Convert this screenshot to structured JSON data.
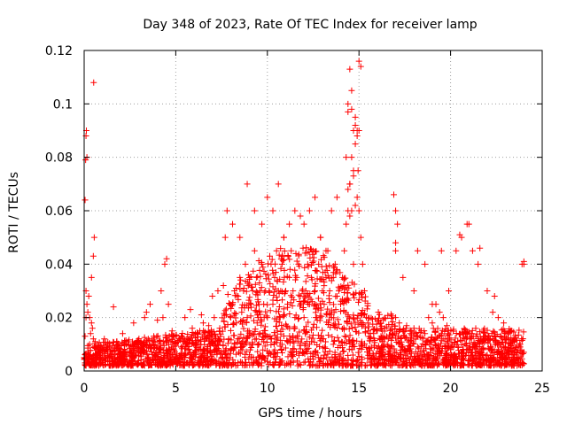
{
  "chart_data": {
    "type": "scatter",
    "title": "Day 348 of 2023, Rate Of TEC Index for receiver lamp",
    "xlabel": "GPS time / hours",
    "ylabel": "ROTI / TECUs",
    "xlim": [
      0,
      25
    ],
    "ylim": [
      0,
      0.12
    ],
    "x_ticks": [
      0,
      5,
      10,
      15,
      20,
      25
    ],
    "x_tick_labels": [
      "0",
      "5",
      "10",
      "15",
      "20",
      "25"
    ],
    "y_ticks": [
      0,
      0.02,
      0.04,
      0.06,
      0.08,
      0.1,
      0.12
    ],
    "y_tick_labels": [
      "0",
      "0.02",
      "0.04",
      "0.06",
      "0.08",
      "0.1",
      "0.12"
    ],
    "grid": true,
    "marker": "+",
    "color": "#ff0000",
    "series": [
      {
        "x": [
          0.0,
          0.05,
          0.1,
          0.1,
          0.15,
          0.2,
          0.25,
          0.3,
          0.35,
          0.4,
          0.45,
          0.5,
          0.55,
          0.6,
          0.05,
          0.08,
          0.1,
          0.12,
          0.15,
          0.5,
          0.55,
          0.52,
          0.3,
          0.4,
          1.0,
          1.2,
          1.5,
          1.8,
          2.0,
          2.3,
          2.6,
          2.9,
          3.2,
          3.5,
          3.8,
          4.1,
          4.3,
          4.4,
          4.5,
          4.6,
          4.8,
          5.0,
          5.3,
          5.6,
          5.9,
          6.2,
          6.5,
          6.8,
          7.1,
          7.4,
          1.1,
          1.6,
          2.1,
          2.7,
          3.3,
          3.4,
          3.6,
          4.0,
          4.2,
          5.5,
          5.8,
          6.4,
          7.0,
          7.3,
          7.6,
          7.7,
          7.8,
          7.9,
          8.0,
          8.1,
          8.2,
          8.3,
          8.4,
          8.5,
          8.6,
          8.7,
          8.8,
          8.9,
          9.0,
          9.1,
          9.2,
          9.3,
          9.4,
          9.5,
          9.6,
          9.7,
          9.8,
          9.9,
          8.0,
          8.2,
          8.4,
          8.6,
          8.8,
          9.0,
          9.2,
          9.4,
          9.6,
          9.8,
          8.1,
          8.5,
          8.9,
          9.3,
          9.7,
          10.0,
          10.1,
          10.2,
          10.3,
          10.4,
          10.5,
          10.6,
          10.7,
          10.8,
          10.9,
          11.0,
          11.1,
          11.2,
          11.3,
          11.4,
          11.5,
          11.6,
          11.7,
          11.8,
          11.9,
          10.0,
          10.3,
          10.6,
          10.9,
          11.2,
          11.5,
          11.8,
          10.2,
          10.8,
          11.4,
          12.0,
          12.1,
          12.2,
          12.3,
          12.4,
          12.5,
          12.6,
          12.7,
          12.8,
          12.9,
          13.0,
          13.1,
          13.2,
          13.3,
          13.4,
          13.5,
          13.6,
          13.7,
          13.8,
          13.9,
          12.0,
          12.3,
          12.6,
          12.9,
          13.2,
          13.5,
          13.8,
          12.4,
          13.0,
          13.6,
          14.0,
          14.1,
          14.2,
          14.3,
          14.4,
          14.5,
          14.6,
          14.7,
          14.8,
          14.9,
          15.0,
          15.1,
          15.2,
          15.3,
          15.4,
          15.5,
          14.3,
          14.4,
          14.5,
          14.6,
          14.7,
          14.8,
          14.9,
          15.0,
          15.1,
          14.4,
          14.6,
          14.8,
          15.0,
          14.5,
          14.7,
          14.9,
          14.6,
          14.8,
          14.5,
          14.95,
          14.4,
          14.7,
          15.6,
          15.8,
          16.0,
          16.2,
          16.4,
          16.6,
          16.8,
          17.0,
          17.2,
          17.4,
          17.6,
          17.8,
          18.0,
          18.2,
          18.4,
          18.6,
          18.8,
          19.0,
          19.2,
          19.4,
          19.6,
          19.8,
          16.9,
          17.0,
          17.1,
          17.0,
          17.4,
          18.2,
          18.6,
          19.5,
          19.9,
          20.3,
          20.6,
          20.9,
          21.2,
          21.5,
          22.0,
          22.3,
          22.6,
          22.9,
          23.2,
          23.5,
          23.8,
          24.0,
          20.0,
          20.2,
          20.4,
          20.6,
          20.8,
          21.0,
          21.2,
          21.4,
          21.6,
          21.8,
          22.0,
          22.2,
          22.4,
          22.6,
          22.8,
          23.0,
          23.2,
          23.4,
          23.6,
          23.8,
          24.0,
          20.5,
          21.0,
          21.6,
          22.4,
          23.9,
          24.0,
          17.0,
          18.0,
          19.0
        ],
        "y": [
          0.005,
          0.013,
          0.02,
          0.03,
          0.025,
          0.022,
          0.028,
          0.01,
          0.014,
          0.018,
          0.016,
          0.012,
          0.009,
          0.011,
          0.064,
          0.079,
          0.088,
          0.09,
          0.08,
          0.043,
          0.05,
          0.108,
          0.02,
          0.035,
          0.006,
          0.008,
          0.005,
          0.009,
          0.007,
          0.01,
          0.008,
          0.011,
          0.009,
          0.012,
          0.013,
          0.011,
          0.02,
          0.04,
          0.042,
          0.025,
          0.015,
          0.01,
          0.013,
          0.012,
          0.016,
          0.014,
          0.018,
          0.017,
          0.02,
          0.016,
          0.012,
          0.024,
          0.014,
          0.018,
          0.02,
          0.022,
          0.025,
          0.019,
          0.03,
          0.02,
          0.023,
          0.021,
          0.028,
          0.03,
          0.032,
          0.05,
          0.06,
          0.012,
          0.02,
          0.025,
          0.03,
          0.018,
          0.028,
          0.035,
          0.022,
          0.03,
          0.04,
          0.02,
          0.015,
          0.025,
          0.03,
          0.045,
          0.035,
          0.02,
          0.03,
          0.04,
          0.025,
          0.03,
          0.008,
          0.01,
          0.012,
          0.009,
          0.011,
          0.013,
          0.01,
          0.012,
          0.014,
          0.011,
          0.055,
          0.05,
          0.07,
          0.06,
          0.055,
          0.02,
          0.03,
          0.04,
          0.025,
          0.035,
          0.045,
          0.03,
          0.02,
          0.04,
          0.05,
          0.03,
          0.025,
          0.035,
          0.045,
          0.03,
          0.02,
          0.035,
          0.04,
          0.028,
          0.03,
          0.065,
          0.06,
          0.07,
          0.05,
          0.055,
          0.06,
          0.058,
          0.012,
          0.01,
          0.013,
          0.02,
          0.03,
          0.04,
          0.025,
          0.035,
          0.045,
          0.03,
          0.02,
          0.04,
          0.05,
          0.03,
          0.025,
          0.035,
          0.045,
          0.03,
          0.02,
          0.035,
          0.04,
          0.028,
          0.03,
          0.055,
          0.06,
          0.065,
          0.05,
          0.045,
          0.06,
          0.065,
          0.011,
          0.012,
          0.01,
          0.025,
          0.035,
          0.045,
          0.055,
          0.06,
          0.07,
          0.08,
          0.075,
          0.085,
          0.09,
          0.06,
          0.05,
          0.04,
          0.03,
          0.02,
          0.015,
          0.08,
          0.1,
          0.113,
          0.105,
          0.09,
          0.095,
          0.088,
          0.116,
          0.114,
          0.097,
          0.098,
          0.092,
          0.09,
          0.07,
          0.073,
          0.065,
          0.06,
          0.062,
          0.058,
          0.075,
          0.068,
          0.04,
          0.012,
          0.014,
          0.015,
          0.013,
          0.016,
          0.012,
          0.014,
          0.02,
          0.018,
          0.015,
          0.017,
          0.014,
          0.016,
          0.013,
          0.015,
          0.014,
          0.02,
          0.018,
          0.025,
          0.022,
          0.02,
          0.017,
          0.066,
          0.06,
          0.055,
          0.048,
          0.035,
          0.045,
          0.04,
          0.045,
          0.03,
          0.045,
          0.05,
          0.055,
          0.045,
          0.04,
          0.03,
          0.022,
          0.02,
          0.018,
          0.015,
          0.012,
          0.01,
          0.04,
          0.008,
          0.006,
          0.009,
          0.007,
          0.01,
          0.008,
          0.006,
          0.009,
          0.007,
          0.008,
          0.006,
          0.009,
          0.007,
          0.008,
          0.006,
          0.009,
          0.007,
          0.008,
          0.006,
          0.009,
          0.007,
          0.051,
          0.055,
          0.046,
          0.028,
          0.04,
          0.041,
          0.045,
          0.03,
          0.025
        ]
      }
    ]
  }
}
